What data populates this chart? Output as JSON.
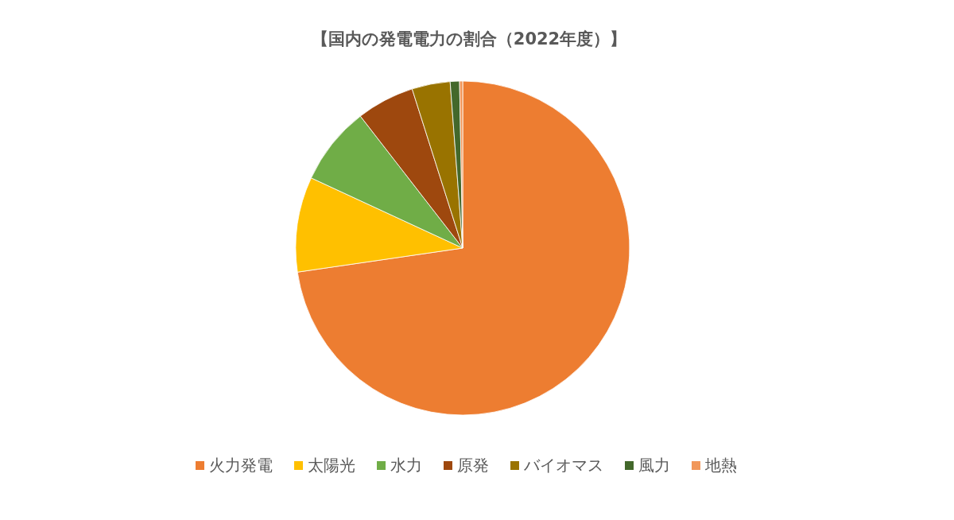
{
  "chart_data": {
    "type": "pie",
    "title": "【国内の発電電力の割合（2022年度）】",
    "categories": [
      "火力発電",
      "太陽光",
      "水力",
      "原発",
      "バイオマス",
      "風力",
      "地熱"
    ],
    "values": [
      72.7,
      9.2,
      7.6,
      5.6,
      3.7,
      0.9,
      0.3
    ],
    "colors": [
      "#ed7d31",
      "#ffc000",
      "#70ad47",
      "#9e480e",
      "#997300",
      "#43682b",
      "#f1975a"
    ],
    "legend": "bottom"
  }
}
